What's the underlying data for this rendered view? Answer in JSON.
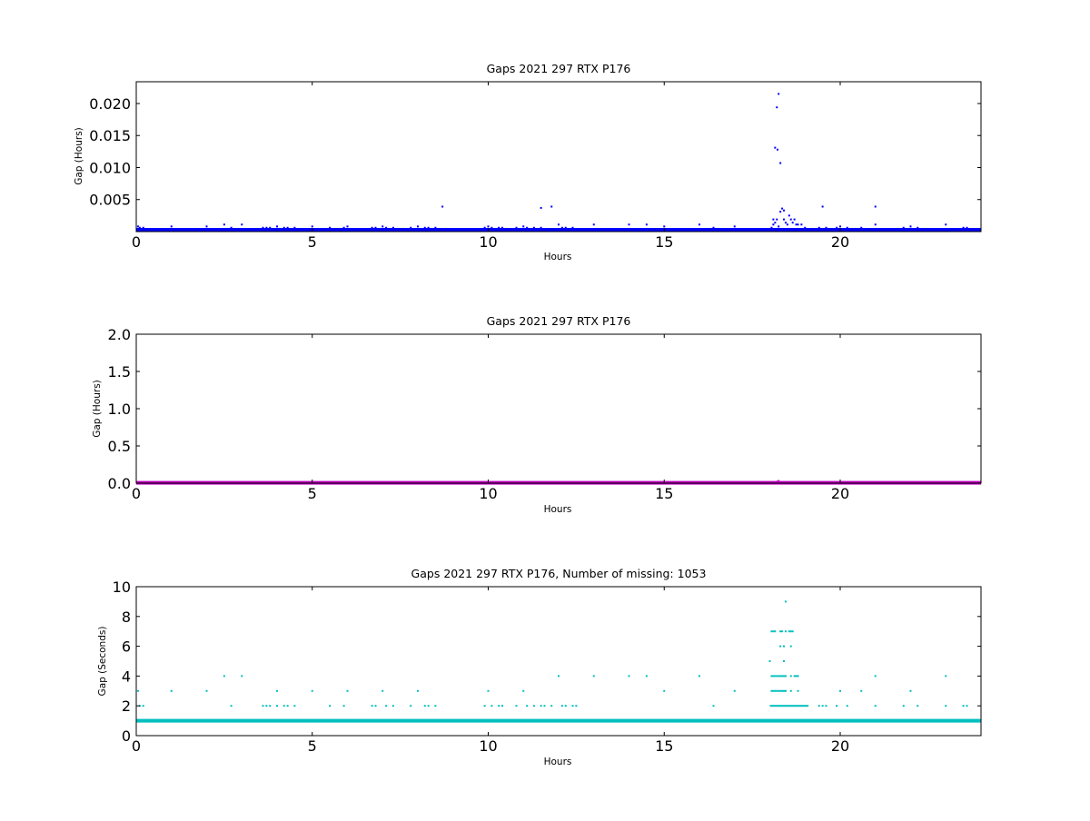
{
  "chart_data": [
    {
      "type": "scatter",
      "title": "Gaps 2021 297 RTX  P176",
      "xlabel": "Hours",
      "ylabel": "Gap (Hours)",
      "xlim": [
        0,
        24
      ],
      "ylim": [
        0,
        0.0234
      ],
      "xticks": [
        0,
        5,
        10,
        15,
        20
      ],
      "yticks": [
        0.005,
        0.01,
        0.015,
        0.02
      ],
      "ytick_labels": [
        "0.005",
        "0.010",
        "0.015",
        "0.020"
      ],
      "grid": false,
      "marker_color": "#0000ff",
      "baseline": {
        "value": 0.00028,
        "x_range": [
          0,
          24
        ]
      },
      "points": [
        [
          0.05,
          0.0008
        ],
        [
          0.1,
          0.0006
        ],
        [
          0.2,
          0.0006
        ],
        [
          1.0,
          0.0008
        ],
        [
          2.0,
          0.0008
        ],
        [
          2.5,
          0.0011
        ],
        [
          2.7,
          0.0006
        ],
        [
          3.0,
          0.0011
        ],
        [
          3.6,
          0.0006
        ],
        [
          3.7,
          0.0006
        ],
        [
          3.8,
          0.0006
        ],
        [
          4.0,
          0.0008
        ],
        [
          4.2,
          0.0006
        ],
        [
          4.3,
          0.0006
        ],
        [
          4.5,
          0.0006
        ],
        [
          5.0,
          0.0008
        ],
        [
          5.5,
          0.0006
        ],
        [
          5.9,
          0.0006
        ],
        [
          6.0,
          0.0008
        ],
        [
          6.7,
          0.0006
        ],
        [
          6.8,
          0.0006
        ],
        [
          7.0,
          0.0008
        ],
        [
          7.1,
          0.0006
        ],
        [
          7.3,
          0.0006
        ],
        [
          7.8,
          0.0006
        ],
        [
          8.0,
          0.0008
        ],
        [
          8.2,
          0.0006
        ],
        [
          8.3,
          0.0006
        ],
        [
          8.5,
          0.0006
        ],
        [
          8.7,
          0.0039
        ],
        [
          9.9,
          0.0006
        ],
        [
          10.0,
          0.0008
        ],
        [
          10.1,
          0.0006
        ],
        [
          10.3,
          0.0006
        ],
        [
          10.4,
          0.0006
        ],
        [
          10.8,
          0.0006
        ],
        [
          11.0,
          0.0008
        ],
        [
          11.1,
          0.0006
        ],
        [
          11.3,
          0.0006
        ],
        [
          11.5,
          0.0006
        ],
        [
          11.5,
          0.0037
        ],
        [
          11.8,
          0.0039
        ],
        [
          12.0,
          0.0011
        ],
        [
          12.1,
          0.0006
        ],
        [
          12.2,
          0.0006
        ],
        [
          12.4,
          0.0006
        ],
        [
          13.0,
          0.0011
        ],
        [
          14.0,
          0.0011
        ],
        [
          14.5,
          0.0011
        ],
        [
          15.0,
          0.0008
        ],
        [
          16.0,
          0.0011
        ],
        [
          16.4,
          0.0006
        ],
        [
          17.0,
          0.0008
        ],
        [
          18.05,
          0.0006
        ],
        [
          18.1,
          0.0011
        ],
        [
          18.1,
          0.0019
        ],
        [
          18.15,
          0.0014
        ],
        [
          18.2,
          0.0019
        ],
        [
          18.25,
          0.0008
        ],
        [
          18.15,
          0.0131
        ],
        [
          18.2,
          0.0194
        ],
        [
          18.22,
          0.0128
        ],
        [
          18.25,
          0.0215
        ],
        [
          18.3,
          0.0107
        ],
        [
          18.3,
          0.0031
        ],
        [
          18.35,
          0.0036
        ],
        [
          18.4,
          0.0033
        ],
        [
          18.4,
          0.0019
        ],
        [
          18.45,
          0.0014
        ],
        [
          18.5,
          0.0011
        ],
        [
          18.55,
          0.0025
        ],
        [
          18.6,
          0.0019
        ],
        [
          18.65,
          0.0014
        ],
        [
          18.7,
          0.0019
        ],
        [
          18.75,
          0.0011
        ],
        [
          18.8,
          0.0011
        ],
        [
          18.9,
          0.0011
        ],
        [
          19.0,
          0.0006
        ],
        [
          19.4,
          0.0006
        ],
        [
          19.5,
          0.0039
        ],
        [
          19.6,
          0.0006
        ],
        [
          19.9,
          0.0006
        ],
        [
          20.0,
          0.0008
        ],
        [
          20.2,
          0.0006
        ],
        [
          20.6,
          0.0006
        ],
        [
          21.0,
          0.0011
        ],
        [
          21.0,
          0.0039
        ],
        [
          21.8,
          0.0006
        ],
        [
          22.0,
          0.0008
        ],
        [
          22.2,
          0.0006
        ],
        [
          23.0,
          0.0011
        ],
        [
          23.5,
          0.0006
        ],
        [
          23.6,
          0.0006
        ]
      ]
    },
    {
      "type": "scatter",
      "title": "Gaps 2021 297 RTX  P176",
      "xlabel": "Hours",
      "ylabel": "Gap (Hours)",
      "xlim": [
        0,
        24
      ],
      "ylim": [
        0,
        2.0
      ],
      "xticks": [
        0,
        5,
        10,
        15,
        20
      ],
      "yticks": [
        0.0,
        0.5,
        1.0,
        1.5,
        2.0
      ],
      "ytick_labels": [
        "0.0",
        "0.5",
        "1.0",
        "1.5",
        "2.0"
      ],
      "grid": false,
      "marker_color": "#bf00bf",
      "baseline": {
        "value": 0.005,
        "x_range": [
          0,
          24
        ]
      },
      "points": [
        [
          18.2,
          0.02
        ],
        [
          18.25,
          0.03
        ]
      ]
    },
    {
      "type": "scatter",
      "title": "Gaps 2021 297 RTX  P176, Number of missing: 1053",
      "xlabel": "Hours",
      "ylabel": "Gap (Seconds)",
      "xlim": [
        0,
        24
      ],
      "ylim": [
        0,
        10
      ],
      "xticks": [
        0,
        5,
        10,
        15,
        20
      ],
      "yticks": [
        0,
        2,
        4,
        6,
        8,
        10
      ],
      "ytick_labels": [
        "0",
        "2",
        "4",
        "6",
        "8",
        "10"
      ],
      "grid": false,
      "marker_color": "#00bfbf",
      "baseline": {
        "value": 1.0,
        "x_range": [
          0,
          24
        ]
      },
      "dense_band": {
        "value": 2.0,
        "x_range": [
          18.0,
          19.1
        ]
      },
      "points": [
        [
          0.05,
          3
        ],
        [
          0.1,
          2
        ],
        [
          0.2,
          2
        ],
        [
          1.0,
          3
        ],
        [
          2.0,
          3
        ],
        [
          2.5,
          4
        ],
        [
          2.7,
          2
        ],
        [
          3.0,
          4
        ],
        [
          3.6,
          2
        ],
        [
          3.7,
          2
        ],
        [
          3.8,
          2
        ],
        [
          4.0,
          3
        ],
        [
          4.0,
          2
        ],
        [
          4.2,
          2
        ],
        [
          4.3,
          2
        ],
        [
          4.5,
          2
        ],
        [
          5.0,
          3
        ],
        [
          5.5,
          2
        ],
        [
          5.9,
          2
        ],
        [
          6.0,
          3
        ],
        [
          6.7,
          2
        ],
        [
          6.8,
          2
        ],
        [
          7.0,
          3
        ],
        [
          7.1,
          2
        ],
        [
          7.3,
          2
        ],
        [
          7.8,
          2
        ],
        [
          8.0,
          3
        ],
        [
          8.2,
          2
        ],
        [
          8.3,
          2
        ],
        [
          8.5,
          2
        ],
        [
          9.9,
          2
        ],
        [
          10.0,
          3
        ],
        [
          10.1,
          2
        ],
        [
          10.3,
          2
        ],
        [
          10.4,
          2
        ],
        [
          10.8,
          2
        ],
        [
          11.0,
          3
        ],
        [
          11.1,
          2
        ],
        [
          11.3,
          2
        ],
        [
          11.5,
          2
        ],
        [
          11.6,
          2
        ],
        [
          11.8,
          2
        ],
        [
          12.0,
          4
        ],
        [
          12.1,
          2
        ],
        [
          12.2,
          2
        ],
        [
          12.4,
          2
        ],
        [
          12.5,
          2
        ],
        [
          13.0,
          4
        ],
        [
          14.0,
          4
        ],
        [
          14.5,
          4
        ],
        [
          15.0,
          3
        ],
        [
          16.0,
          4
        ],
        [
          16.4,
          2
        ],
        [
          17.0,
          3
        ],
        [
          18.0,
          5
        ],
        [
          18.05,
          7
        ],
        [
          18.1,
          7
        ],
        [
          18.15,
          7
        ],
        [
          18.05,
          4
        ],
        [
          18.1,
          4
        ],
        [
          18.15,
          4
        ],
        [
          18.2,
          4
        ],
        [
          18.25,
          4
        ],
        [
          18.3,
          4
        ],
        [
          18.35,
          4
        ],
        [
          18.4,
          4
        ],
        [
          18.45,
          4
        ],
        [
          18.05,
          3
        ],
        [
          18.1,
          3
        ],
        [
          18.15,
          3
        ],
        [
          18.2,
          3
        ],
        [
          18.25,
          3
        ],
        [
          18.3,
          3
        ],
        [
          18.35,
          3
        ],
        [
          18.4,
          3
        ],
        [
          18.45,
          3
        ],
        [
          18.6,
          3
        ],
        [
          18.8,
          3
        ],
        [
          18.3,
          7
        ],
        [
          18.35,
          7
        ],
        [
          18.45,
          7
        ],
        [
          18.55,
          7
        ],
        [
          18.6,
          7
        ],
        [
          18.65,
          7
        ],
        [
          18.3,
          6
        ],
        [
          18.4,
          6
        ],
        [
          18.6,
          6
        ],
        [
          18.4,
          5
        ],
        [
          18.45,
          9
        ],
        [
          18.6,
          4
        ],
        [
          18.7,
          4
        ],
        [
          18.75,
          4
        ],
        [
          18.8,
          4
        ],
        [
          19.4,
          2
        ],
        [
          19.5,
          2
        ],
        [
          19.6,
          2
        ],
        [
          19.9,
          2
        ],
        [
          20.0,
          3
        ],
        [
          20.2,
          2
        ],
        [
          20.6,
          3
        ],
        [
          21.0,
          4
        ],
        [
          21.0,
          2
        ],
        [
          21.8,
          2
        ],
        [
          22.0,
          3
        ],
        [
          22.2,
          2
        ],
        [
          23.0,
          4
        ],
        [
          23.0,
          2
        ],
        [
          23.5,
          2
        ],
        [
          23.6,
          2
        ]
      ]
    }
  ]
}
